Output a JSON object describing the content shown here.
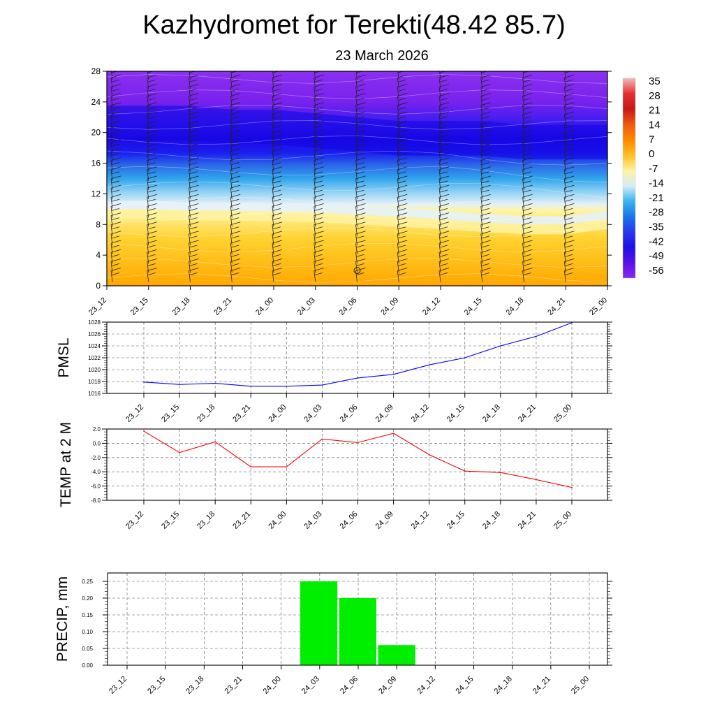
{
  "title": "Kazhydromet for Terekti(48.42 85.7)",
  "subtitle": "23 March 2026",
  "time_labels": [
    "23_12",
    "23_15",
    "23_18",
    "23_21",
    "24_00",
    "24_03",
    "24_06",
    "24_09",
    "24_12",
    "24_15",
    "24_18",
    "24_21",
    "25_00"
  ],
  "chart_data": [
    {
      "type": "heatmap",
      "name": "cross-section",
      "ylabel": "",
      "y_ticks": [
        0,
        4,
        8,
        12,
        16,
        20,
        24,
        28
      ],
      "ylim": [
        0,
        28
      ],
      "x": [
        "23_12",
        "23_15",
        "23_18",
        "23_21",
        "24_00",
        "24_03",
        "24_06",
        "24_09",
        "24_12",
        "24_15",
        "24_18",
        "24_21",
        "25_00"
      ],
      "freezing_level": [
        10,
        10,
        9.8,
        9.8,
        9.7,
        9.6,
        9.3,
        9,
        8.7,
        8.3,
        8,
        8,
        8.7
      ],
      "upper_cold_core_level": [
        22,
        22,
        22,
        21.5,
        21.5,
        21,
        20.5,
        20,
        20,
        20,
        19.5,
        19.5,
        19.5
      ],
      "colorbar_labels": [
        "35",
        "28",
        "21",
        "14",
        "7",
        "0",
        "-7",
        "-14",
        "-21",
        "-28",
        "-35",
        "-42",
        "-49",
        "-56"
      ],
      "colorbar_colors": [
        "#f4b8b8",
        "#e33030",
        "#c81818",
        "#ee5a10",
        "#ff8800",
        "#ffc020",
        "#fff2a0",
        "#d8ecf8",
        "#38b4f0",
        "#1c74e8",
        "#2838f0",
        "#2010ea",
        "#5a10e8",
        "#8828f0"
      ]
    },
    {
      "type": "line",
      "name": "pmsl",
      "ylabel": "PMSL",
      "x": [
        "23_12",
        "23_15",
        "23_18",
        "23_21",
        "24_00",
        "24_03",
        "24_06",
        "24_09",
        "24_12",
        "24_15",
        "24_18",
        "24_21",
        "25_00"
      ],
      "values": [
        1017.9,
        1017.5,
        1017.7,
        1017.2,
        1017.2,
        1017.4,
        1018.6,
        1019.2,
        1020.8,
        1022.0,
        1024.0,
        1025.6,
        1027.9
      ],
      "ylim": [
        1016,
        1028
      ],
      "y_ticks": [
        1016,
        1018,
        1020,
        1022,
        1024,
        1026,
        1028
      ],
      "color": "#0000ff"
    },
    {
      "type": "line",
      "name": "temp",
      "ylabel": "TEMP at 2 M",
      "x": [
        "23_12",
        "23_15",
        "23_18",
        "23_21",
        "24_00",
        "24_03",
        "24_06",
        "24_09",
        "24_12",
        "24_15",
        "24_18",
        "24_21",
        "25_00"
      ],
      "values": [
        1.7,
        -1.3,
        0.2,
        -3.3,
        -3.3,
        0.6,
        0.1,
        1.4,
        -1.6,
        -3.9,
        -4.1,
        -5.1,
        -6.2
      ],
      "ylim": [
        -8,
        2
      ],
      "y_ticks": [
        -8,
        -6,
        -4,
        -2,
        0,
        2
      ],
      "y_tick_labels": [
        "-8.0",
        "-6.0",
        "-4.0",
        "-2.0",
        "0.0",
        "2.0"
      ],
      "color": "#ff0000"
    },
    {
      "type": "bar",
      "name": "precip",
      "ylabel": "PRECIP, mm",
      "categories": [
        "23_12",
        "23_15",
        "23_18",
        "23_21",
        "24_00",
        "24_03",
        "24_06",
        "24_09",
        "24_12",
        "24_15",
        "24_18",
        "24_21",
        "25_00"
      ],
      "values": [
        0,
        0,
        0,
        0,
        0,
        0.25,
        0.2,
        0.06,
        0,
        0,
        0,
        0,
        0
      ],
      "ylim": [
        0,
        0.275
      ],
      "y_ticks": [
        0,
        0.05,
        0.1,
        0.15,
        0.2,
        0.25
      ],
      "y_tick_labels": [
        "0.00",
        "0.05",
        "0.10",
        "0.15",
        "0.20",
        "0.25"
      ],
      "color": "#00ee00"
    }
  ]
}
